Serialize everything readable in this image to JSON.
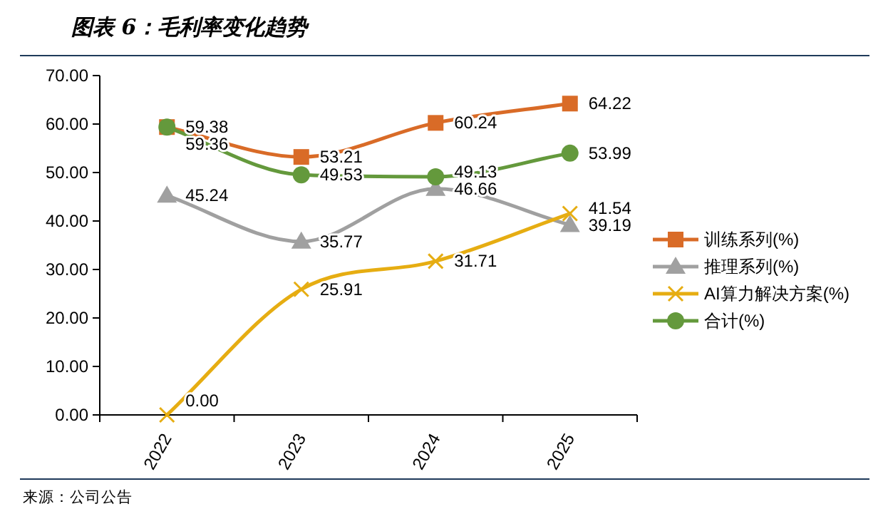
{
  "chart_data": {
    "type": "line",
    "title": "图表 6：毛利率变化趋势",
    "categories": [
      "2022",
      "2023",
      "2024",
      "2025"
    ],
    "series": [
      {
        "name": "训练系列(%)",
        "color": "#d96b27",
        "marker": "square",
        "values": [
          59.38,
          53.21,
          60.24,
          64.22
        ],
        "value_labels": [
          "59.38",
          "53.21",
          "60.24",
          "64.22"
        ]
      },
      {
        "name": "推理系列(%)",
        "color": "#a0a0a0",
        "marker": "triangle",
        "values": [
          45.24,
          35.77,
          46.66,
          39.19
        ],
        "value_labels": [
          "45.24",
          "35.77",
          "46.66",
          "39.19"
        ]
      },
      {
        "name": "AI算力解决方案(%)",
        "color": "#e6ad12",
        "marker": "cross",
        "values": [
          0,
          25.91,
          31.71,
          41.54
        ],
        "value_labels": [
          "0.00",
          "25.91",
          "31.71",
          "41.54"
        ]
      },
      {
        "name": "合计(%)",
        "color": "#64993c",
        "marker": "circle",
        "values": [
          59.36,
          49.53,
          49.13,
          53.99
        ],
        "value_labels": [
          "59.36",
          "49.53",
          "49.13",
          "53.99"
        ]
      }
    ],
    "ylim": [
      0,
      70
    ],
    "yticks": [
      {
        "value": 0,
        "label": "0.00"
      },
      {
        "value": 10,
        "label": "10.00"
      },
      {
        "value": 20,
        "label": "20.00"
      },
      {
        "value": 30,
        "label": "30.00"
      },
      {
        "value": 40,
        "label": "40.00"
      },
      {
        "value": 50,
        "label": "50.00"
      },
      {
        "value": 60,
        "label": "60.00"
      },
      {
        "value": 70,
        "label": "70.00"
      }
    ],
    "grid": false,
    "legend": "right",
    "annotations": [
      "来源：公司公告"
    ]
  }
}
